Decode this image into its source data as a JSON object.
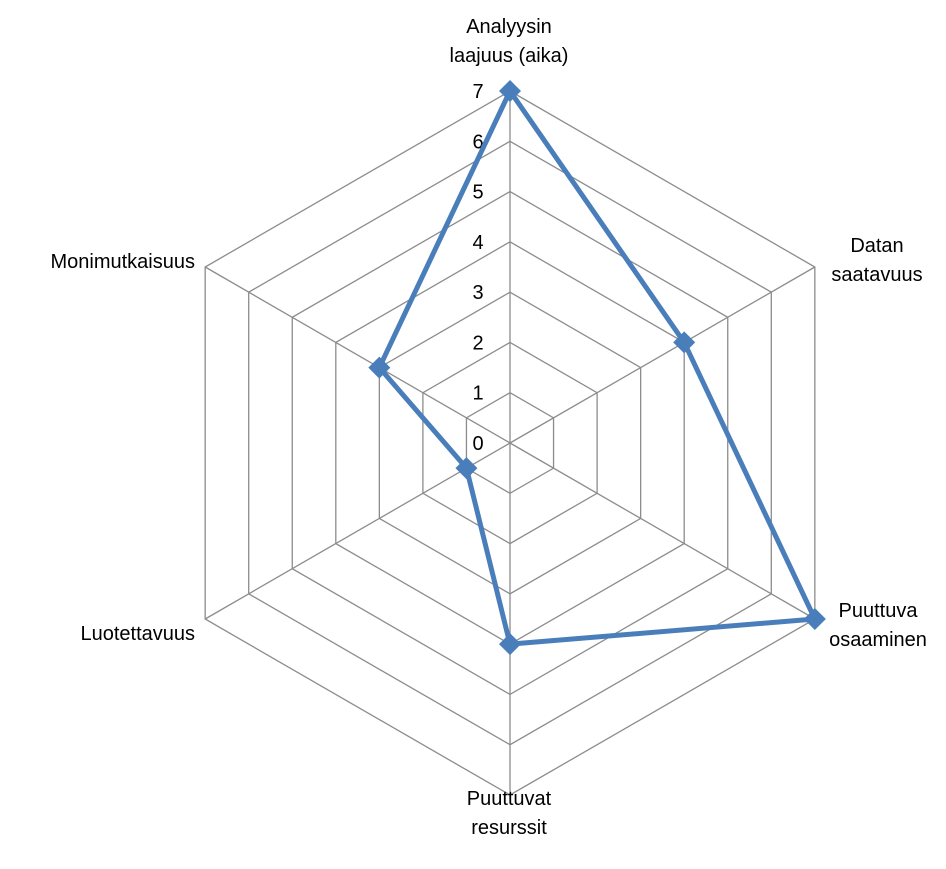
{
  "chart_data": {
    "type": "radar",
    "title": "",
    "axes": [
      [
        "Analyysin",
        "laajuus (aika)"
      ],
      [
        "Datan",
        "saatavuus"
      ],
      [
        "Puuttuva",
        "osaaminen"
      ],
      [
        "Puuttuvat",
        "resurssit"
      ],
      [
        "Luotettavuus"
      ],
      [
        "Monimutkaisuus"
      ]
    ],
    "range": [
      0,
      7
    ],
    "ticks": [
      "0",
      "1",
      "2",
      "3",
      "4",
      "5",
      "6",
      "7"
    ],
    "grid": true,
    "legend": "none",
    "series": [
      {
        "values": [
          7,
          4,
          7,
          4,
          1,
          3
        ],
        "color": "#4a7ebb",
        "marker": "diamond"
      }
    ]
  }
}
